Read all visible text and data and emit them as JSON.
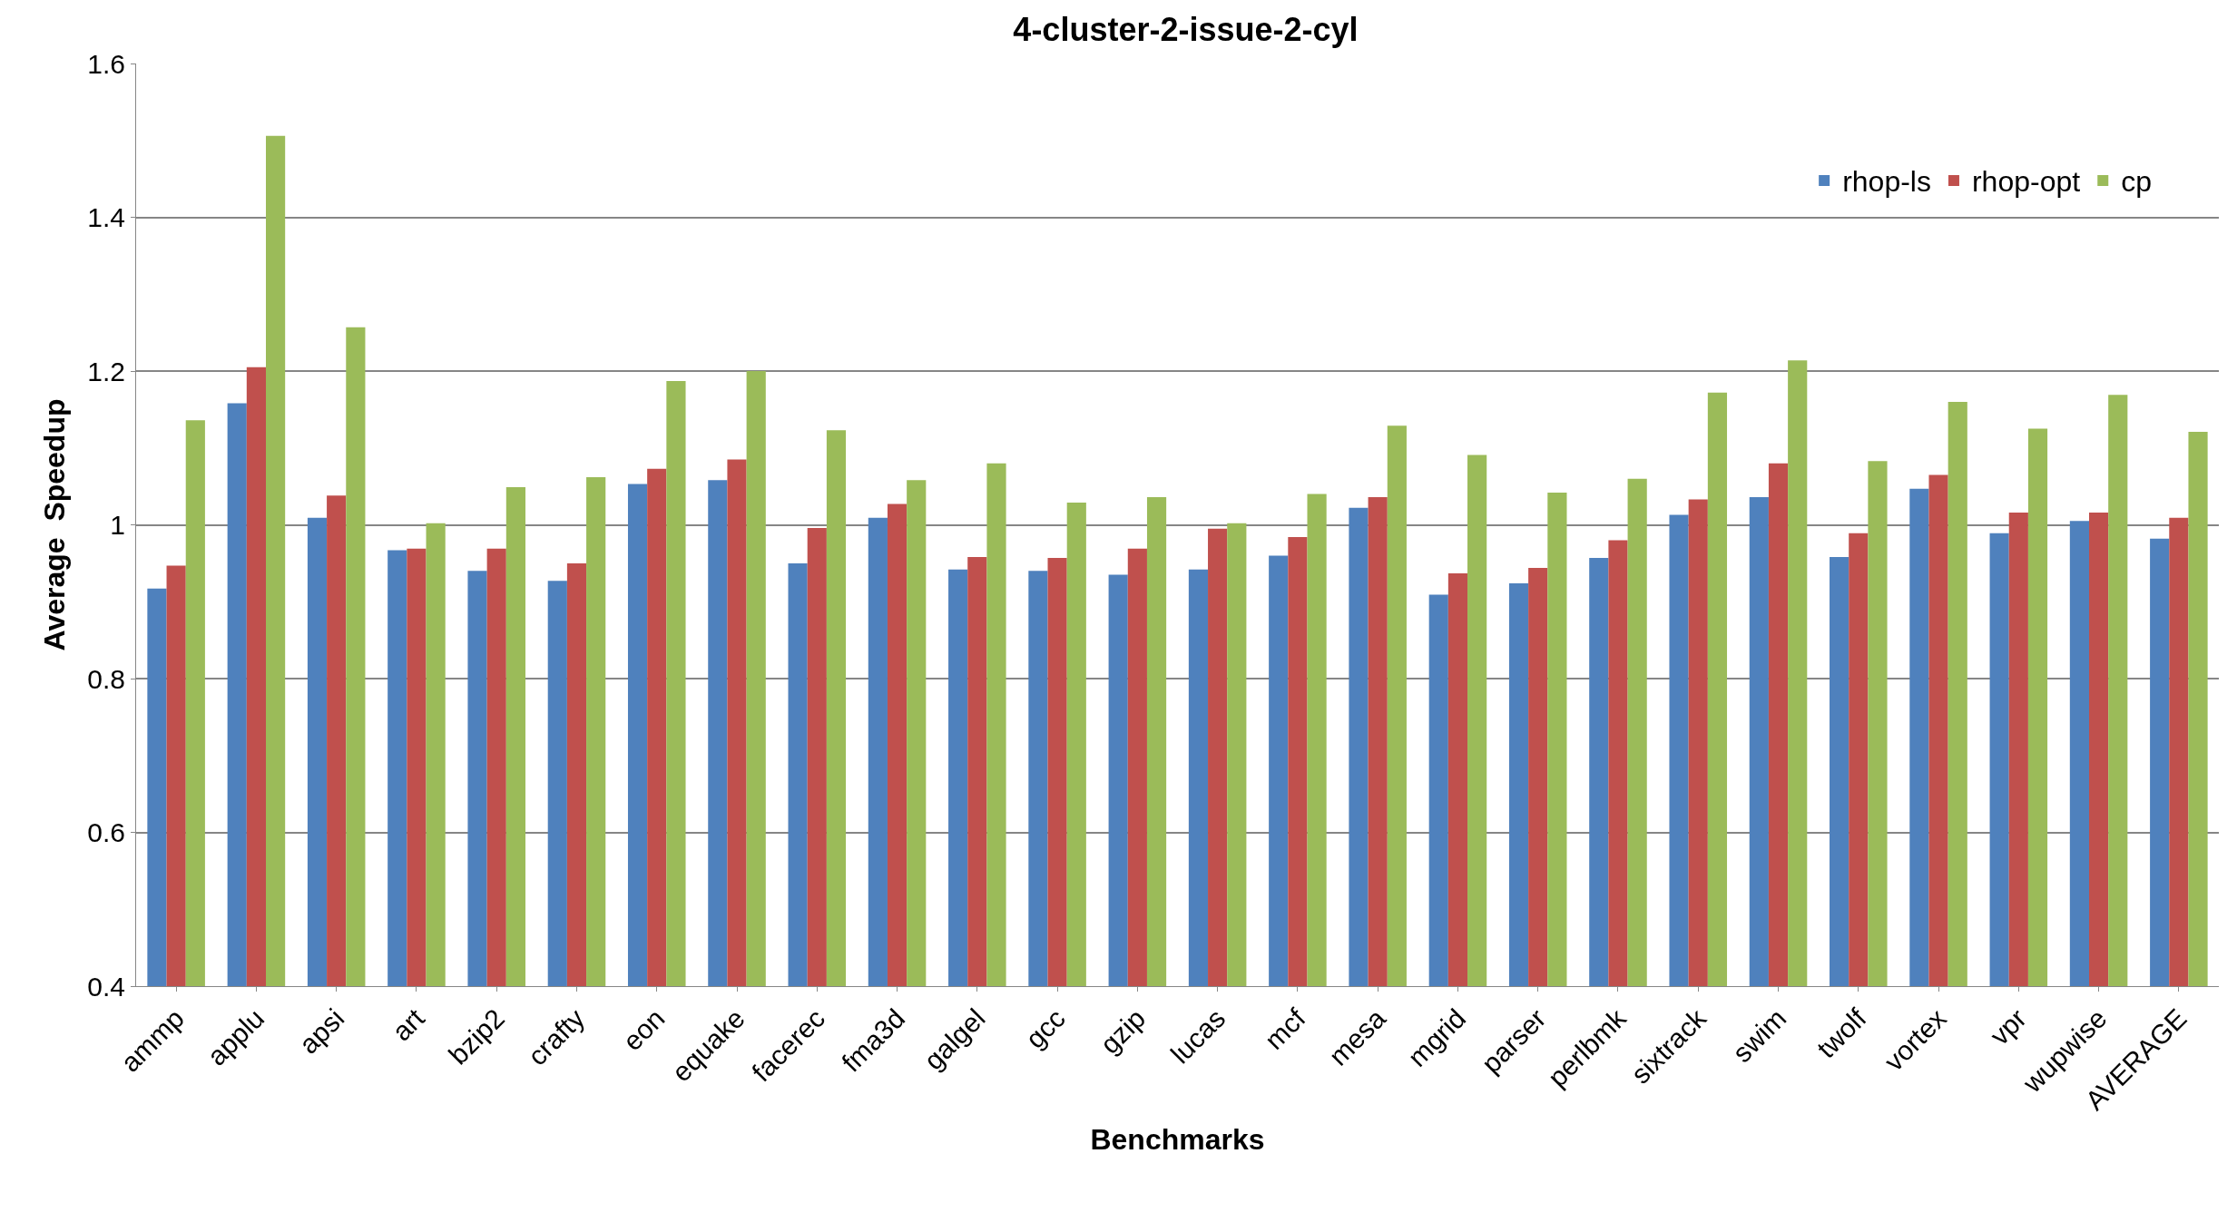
{
  "chart_data": {
    "type": "bar",
    "title": "4-cluster-2-issue-2-cyl",
    "xlabel": "Benchmarks",
    "ylabel": "Average  Speedup",
    "categories": [
      "ammp",
      "applu",
      "apsi",
      "art",
      "bzip2",
      "crafty",
      "eon",
      "equake",
      "facerec",
      "fma3d",
      "galgel",
      "gcc",
      "gzip",
      "lucas",
      "mcf",
      "mesa",
      "mgrid",
      "parser",
      "perlbmk",
      "sixtrack",
      "swim",
      "twolf",
      "vortex",
      "vpr",
      "wupwise",
      "AVERAGE"
    ],
    "series": [
      {
        "name": "rhop-ls",
        "color": "#4f81bd",
        "values": [
          0.917,
          1.158,
          1.009,
          0.967,
          0.94,
          0.927,
          1.053,
          1.058,
          0.95,
          1.009,
          0.942,
          0.94,
          0.935,
          0.942,
          0.96,
          1.022,
          0.909,
          0.924,
          0.957,
          1.013,
          1.036,
          0.958,
          1.047,
          0.989,
          1.005,
          0.982
        ]
      },
      {
        "name": "rhop-opt",
        "color": "#c0504d",
        "values": [
          0.947,
          1.205,
          1.038,
          0.969,
          0.969,
          0.95,
          1.073,
          1.085,
          0.996,
          1.027,
          0.958,
          0.957,
          0.969,
          0.995,
          0.984,
          1.036,
          0.937,
          0.944,
          0.98,
          1.033,
          1.08,
          0.989,
          1.065,
          1.016,
          1.016,
          1.009
        ]
      },
      {
        "name": "cp",
        "color": "#9bbb59",
        "values": [
          1.136,
          1.506,
          1.257,
          1.002,
          1.049,
          1.062,
          1.187,
          1.2,
          1.123,
          1.058,
          1.08,
          1.029,
          1.036,
          1.002,
          1.04,
          1.129,
          1.091,
          1.042,
          1.06,
          1.172,
          1.214,
          1.083,
          1.16,
          1.125,
          1.169,
          1.121
        ]
      }
    ],
    "ylim": [
      0.4,
      1.6
    ],
    "yticks": [
      0.4,
      0.6,
      0.8,
      {
        "value": 1,
        "label": "1"
      },
      1.2,
      1.4,
      1.6
    ],
    "grid": "y",
    "legend": "top right"
  }
}
